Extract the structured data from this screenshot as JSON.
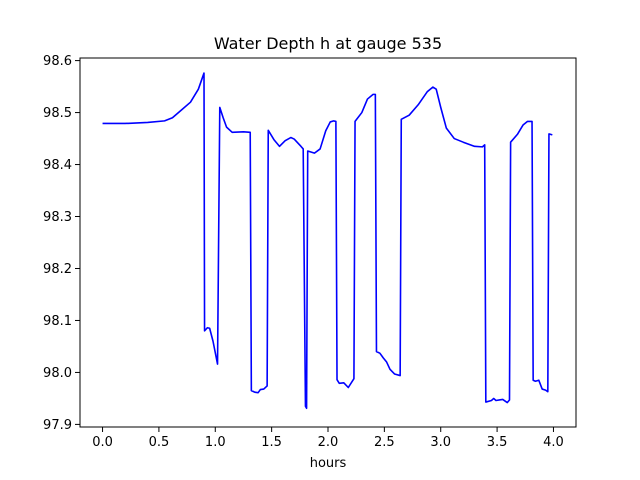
{
  "chart_data": {
    "type": "line",
    "title": "Water Depth h at gauge 535",
    "xlabel": "hours",
    "ylabel": "",
    "xlim": [
      -0.2,
      4.2
    ],
    "ylim": [
      97.895,
      98.605
    ],
    "xticks": [
      0.0,
      0.5,
      1.0,
      1.5,
      2.0,
      2.5,
      3.0,
      3.5,
      4.0
    ],
    "xtick_labels": [
      "0.0",
      "0.5",
      "1.0",
      "1.5",
      "2.0",
      "2.5",
      "3.0",
      "3.5",
      "4.0"
    ],
    "yticks": [
      97.9,
      98.0,
      98.1,
      98.2,
      98.3,
      98.4,
      98.5,
      98.6
    ],
    "ytick_labels": [
      "97.9",
      "98.0",
      "98.1",
      "98.2",
      "98.3",
      "98.4",
      "98.5",
      "98.6"
    ],
    "grid": false,
    "series": [
      {
        "name": "",
        "color": "#0000ff",
        "x": [
          0.0,
          0.2,
          0.4,
          0.55,
          0.62,
          0.7,
          0.78,
          0.85,
          0.9,
          0.905,
          0.93,
          0.95,
          0.98,
          1.02,
          1.04,
          1.07,
          1.1,
          1.15,
          1.25,
          1.31,
          1.32,
          1.35,
          1.38,
          1.4,
          1.43,
          1.46,
          1.47,
          1.52,
          1.57,
          1.62,
          1.67,
          1.7,
          1.76,
          1.78,
          1.8,
          1.81,
          1.82,
          1.88,
          1.93,
          1.98,
          2.02,
          2.05,
          2.07,
          2.08,
          2.1,
          2.14,
          2.18,
          2.23,
          2.24,
          2.3,
          2.35,
          2.4,
          2.42,
          2.43,
          2.46,
          2.49,
          2.52,
          2.55,
          2.59,
          2.64,
          2.65,
          2.72,
          2.8,
          2.88,
          2.93,
          2.96,
          3.0,
          3.05,
          3.12,
          3.2,
          3.3,
          3.37,
          3.39,
          3.4,
          3.45,
          3.47,
          3.49,
          3.52,
          3.55,
          3.59,
          3.61,
          3.62,
          3.68,
          3.73,
          3.77,
          3.81,
          3.82,
          3.84,
          3.87,
          3.9,
          3.93,
          3.95,
          3.96,
          3.99
        ],
        "y": [
          98.479,
          98.479,
          98.481,
          98.484,
          98.49,
          98.505,
          98.52,
          98.545,
          98.576,
          98.08,
          98.086,
          98.085,
          98.06,
          98.016,
          98.51,
          98.49,
          98.472,
          98.462,
          98.463,
          98.462,
          97.965,
          97.962,
          97.961,
          97.967,
          97.968,
          97.974,
          98.466,
          98.448,
          98.435,
          98.446,
          98.452,
          98.449,
          98.435,
          98.43,
          97.935,
          97.931,
          98.426,
          98.422,
          98.43,
          98.465,
          98.482,
          98.484,
          98.483,
          97.986,
          97.979,
          97.98,
          97.971,
          97.988,
          98.483,
          98.5,
          98.526,
          98.535,
          98.535,
          98.04,
          98.037,
          98.028,
          98.02,
          98.006,
          97.997,
          97.994,
          98.487,
          98.495,
          98.515,
          98.54,
          98.549,
          98.545,
          98.51,
          98.47,
          98.45,
          98.443,
          98.435,
          98.434,
          98.438,
          97.943,
          97.946,
          97.95,
          97.946,
          97.947,
          97.948,
          97.942,
          97.947,
          98.443,
          98.458,
          98.476,
          98.483,
          98.483,
          97.985,
          97.983,
          97.985,
          97.968,
          97.966,
          97.963,
          98.459,
          98.457
        ]
      }
    ]
  }
}
